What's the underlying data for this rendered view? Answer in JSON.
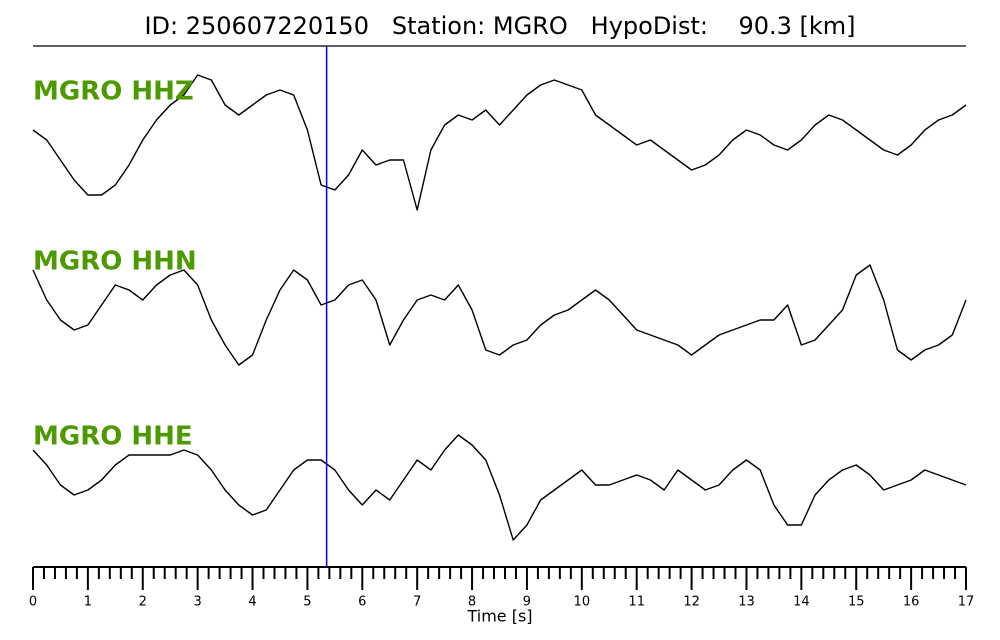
{
  "chart_data": {
    "type": "seismogram",
    "title": "ID: 250607220150   Station: MGRO   HypoDist:    90.3 [km]",
    "xlabel": "Time [s]",
    "xlim": [
      0,
      17
    ],
    "xticks": [
      0,
      1,
      2,
      3,
      4,
      5,
      6,
      7,
      8,
      9,
      10,
      11,
      12,
      13,
      14,
      15,
      16,
      17
    ],
    "minor_ticks_per_major": 5,
    "ylim": [
      -85,
      85
    ],
    "marker_x": 5.35,
    "marker_color": "#0000ff",
    "label_color": "#4c9a00",
    "x": [
      0,
      0.25,
      0.5,
      0.75,
      1,
      1.25,
      1.5,
      1.75,
      2,
      2.25,
      2.5,
      2.75,
      3,
      3.25,
      3.5,
      3.75,
      4,
      4.25,
      4.5,
      4.75,
      5,
      5.25,
      5.5,
      5.75,
      6,
      6.25,
      6.5,
      6.75,
      7,
      7.25,
      7.5,
      7.75,
      8,
      8.25,
      8.5,
      8.75,
      9,
      9.25,
      9.5,
      9.75,
      10,
      10.25,
      10.5,
      10.75,
      11,
      11.25,
      11.5,
      11.75,
      12,
      12.25,
      12.5,
      12.75,
      13,
      13.25,
      13.5,
      13.75,
      14,
      14.25,
      14.5,
      14.75,
      15,
      15.25,
      15.5,
      15.75,
      16,
      16.25,
      16.5,
      16.75,
      17
    ],
    "series": [
      {
        "name": "MGRO HHZ",
        "color": "#000000",
        "values": [
          5,
          -5,
          -25,
          -45,
          -60,
          -60,
          -50,
          -30,
          -5,
          15,
          30,
          40,
          60,
          55,
          30,
          20,
          30,
          40,
          45,
          40,
          5,
          -50,
          -55,
          -40,
          -15,
          -30,
          -25,
          -25,
          -75,
          -15,
          10,
          20,
          15,
          25,
          10,
          25,
          40,
          50,
          55,
          50,
          45,
          20,
          10,
          0,
          -10,
          -5,
          -15,
          -25,
          -35,
          -30,
          -20,
          -5,
          5,
          0,
          -10,
          -15,
          -5,
          10,
          20,
          15,
          5,
          -5,
          -15,
          -20,
          -10,
          5,
          15,
          20,
          30
        ]
      },
      {
        "name": "MGRO HHN",
        "color": "#000000",
        "values": [
          35,
          5,
          -15,
          -25,
          -20,
          0,
          20,
          15,
          5,
          20,
          30,
          35,
          20,
          -15,
          -40,
          -60,
          -50,
          -15,
          15,
          35,
          25,
          0,
          5,
          20,
          25,
          5,
          -40,
          -15,
          5,
          10,
          5,
          20,
          -5,
          -45,
          -50,
          -40,
          -35,
          -20,
          -10,
          -5,
          5,
          15,
          5,
          -10,
          -25,
          -30,
          -35,
          -40,
          -50,
          -40,
          -30,
          -25,
          -20,
          -15,
          -15,
          0,
          -40,
          -35,
          -20,
          -5,
          30,
          40,
          5,
          -45,
          -55,
          -45,
          -40,
          -30,
          5
        ]
      },
      {
        "name": "MGRO HHE",
        "color": "#000000",
        "values": [
          30,
          15,
          -5,
          -15,
          -10,
          0,
          15,
          25,
          25,
          25,
          25,
          30,
          25,
          10,
          -10,
          -25,
          -35,
          -30,
          -10,
          10,
          20,
          20,
          10,
          -10,
          -25,
          -10,
          -20,
          0,
          20,
          10,
          30,
          45,
          35,
          20,
          -15,
          -60,
          -45,
          -20,
          -10,
          0,
          10,
          -5,
          -5,
          0,
          5,
          0,
          -10,
          10,
          0,
          -10,
          -5,
          10,
          20,
          10,
          -25,
          -45,
          -45,
          -15,
          0,
          10,
          15,
          5,
          -10,
          -5,
          0,
          10,
          5,
          0,
          -5
        ]
      }
    ]
  }
}
